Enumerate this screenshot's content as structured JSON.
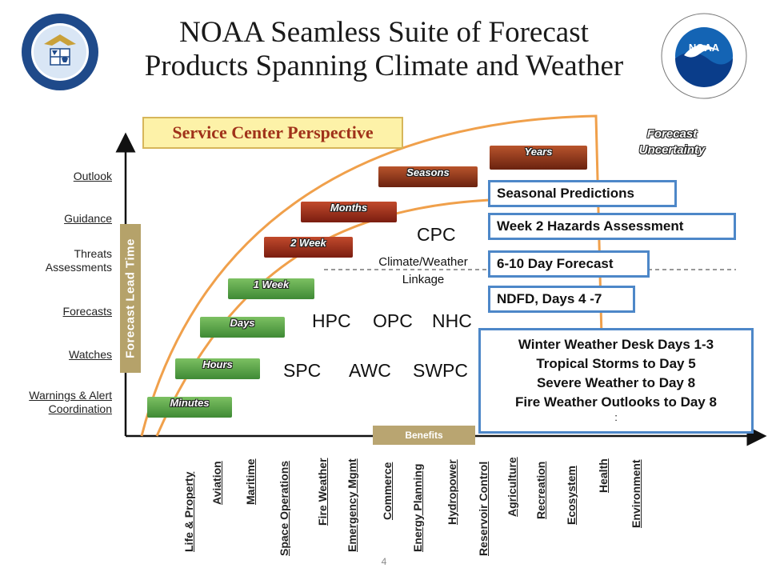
{
  "title_line1": "NOAA Seamless Suite of Forecast",
  "title_line2": "Products Spanning Climate and Weather",
  "logos": {
    "left": "us-department-of-commerce-seal",
    "right": "noaa-logo"
  },
  "perspective_label": "Service Center Perspective",
  "uncertainty_line1": "Forecast",
  "uncertainty_line2": "Uncertainty",
  "axis_label": "Forecast Lead Time",
  "y_labels": {
    "outlook": "Outlook",
    "guidance": "Guidance",
    "threats1": "Threats",
    "threats2": "Assessments",
    "forecasts": "Forecasts",
    "watches": "Watches",
    "warnings1": "Warnings & Alert",
    "warnings2": "Coordination"
  },
  "timescales": {
    "minutes": "Minutes",
    "hours": "Hours",
    "days": "Days",
    "week1": "1 Week",
    "week2": "2 Week",
    "months": "Months",
    "seasons": "Seasons",
    "years": "Years"
  },
  "centers": {
    "cpc": "CPC",
    "linkage1": "Climate/Weather",
    "linkage2": "Linkage",
    "hpc": "HPC",
    "opc": "OPC",
    "nhc": "NHC",
    "spc": "SPC",
    "awc": "AWC",
    "swpc": "SWPC"
  },
  "products": {
    "seasonal": "Seasonal Predictions",
    "week2": "Week 2 Hazards Assessment",
    "day610": "6-10 Day Forecast",
    "ndfd": "NDFD, Days 4 -7",
    "short1": "Winter Weather Desk Days 1-3",
    "short2": "Tropical Storms to Day 5",
    "short3": "Severe Weather to Day 8",
    "short4": "Fire Weather Outlooks to Day 8",
    "short5": ":"
  },
  "benefits_label": "Benefits",
  "benefits": {
    "b0": "Life & Property",
    "b1": "Aviation",
    "b2": "Maritime",
    "b3": "Space Operations",
    "b4": "Fire Weather",
    "b5": "Emergency Mgmt",
    "b6": "Commerce",
    "b7": "Energy Planning",
    "b8": "Hydropower",
    "b9": "Reservoir Control",
    "b10": "Agriculture",
    "b11": "Recreation",
    "b12": "Ecosystem",
    "b13": "Health",
    "b14": "Environment"
  },
  "page_number": "4",
  "colors": {
    "curve": "#f0a04b",
    "box_border": "#4d87c8",
    "band": "#b5a26a"
  }
}
